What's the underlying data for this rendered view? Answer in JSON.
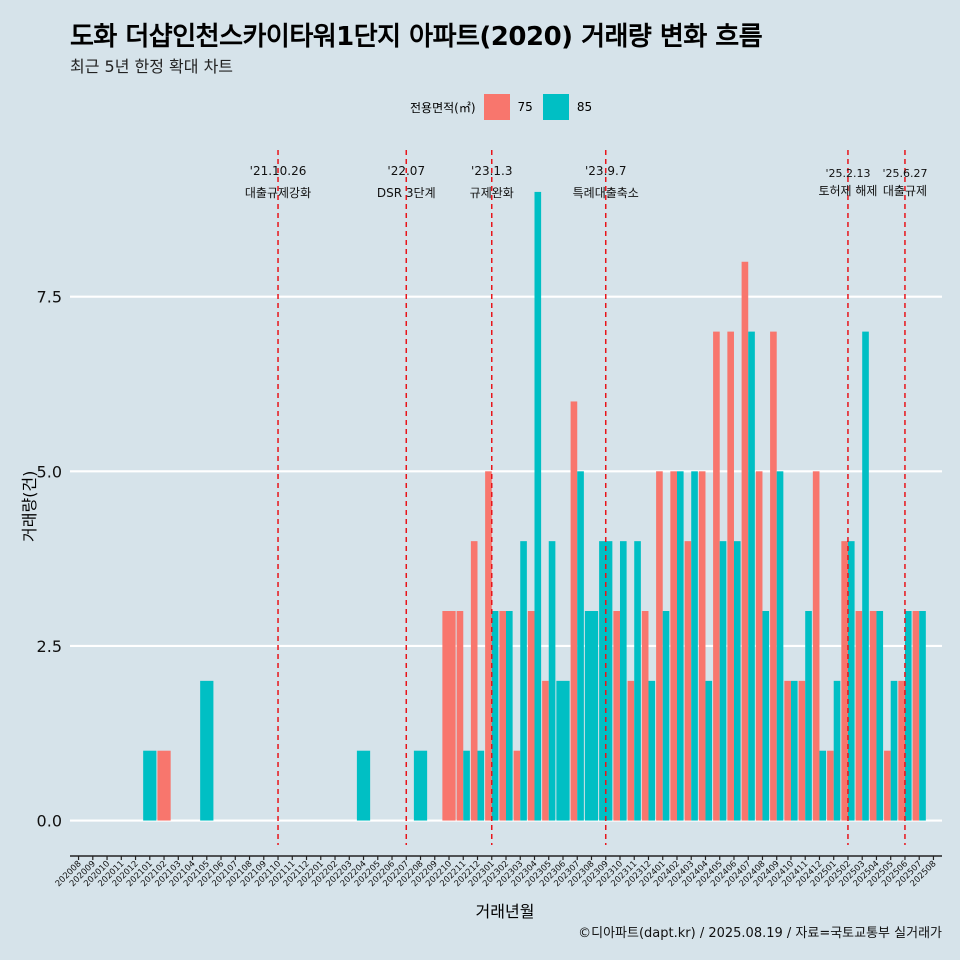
{
  "header": {
    "title": "도화 더샵인천스카이타워1단지 아파트(2020) 거래량 변화 흐름",
    "subtitle": "최근 5년 한정 확대 차트"
  },
  "legend": {
    "title": "전용면적(㎡)",
    "items": [
      {
        "label": "75",
        "color": "#f8766d"
      },
      {
        "label": "85",
        "color": "#00bfc4"
      }
    ]
  },
  "axes": {
    "xlabel": "거래년월",
    "ylabel": "거래량(건)"
  },
  "caption": "©디아파트(dapt.kr) / 2025.08.19 / 자료=국토교통부 실거래가",
  "chart_data": {
    "type": "bar",
    "ylim": [
      -0.35,
      9.6
    ],
    "yticks": [
      0.0,
      2.5,
      5.0,
      7.5
    ],
    "ytick_labels": [
      "0.0",
      "2.5",
      "5.0",
      "7.5"
    ],
    "categories": [
      "202008",
      "202009",
      "202010",
      "202011",
      "202012",
      "202101",
      "202102",
      "202103",
      "202104",
      "202105",
      "202106",
      "202107",
      "202108",
      "202109",
      "202110",
      "202111",
      "202112",
      "202201",
      "202202",
      "202203",
      "202204",
      "202205",
      "202206",
      "202207",
      "202208",
      "202209",
      "202210",
      "202211",
      "202212",
      "202301",
      "202302",
      "202303",
      "202304",
      "202305",
      "202306",
      "202307",
      "202308",
      "202309",
      "202310",
      "202311",
      "202312",
      "202401",
      "202402",
      "202403",
      "202404",
      "202405",
      "202406",
      "202407",
      "202408",
      "202409",
      "202410",
      "202411",
      "202412",
      "202501",
      "202502",
      "202503",
      "202504",
      "202505",
      "202506",
      "202507",
      "202508"
    ],
    "series": [
      {
        "name": "75",
        "color": "#f8766d",
        "values": [
          0,
          0,
          0,
          0,
          0,
          0,
          1,
          0,
          0,
          0,
          0,
          0,
          0,
          0,
          0,
          0,
          0,
          0,
          0,
          0,
          0,
          0,
          0,
          0,
          0,
          0,
          3,
          3,
          4,
          5,
          3,
          1,
          3,
          2,
          0,
          6,
          0,
          0,
          3,
          2,
          3,
          5,
          5,
          4,
          5,
          7,
          7,
          8,
          5,
          7,
          2,
          2,
          5,
          1,
          4,
          3,
          3,
          1,
          2,
          3,
          0
        ]
      },
      {
        "name": "85",
        "color": "#00bfc4",
        "values": [
          0,
          0,
          0,
          0,
          0,
          1,
          0,
          0,
          0,
          2,
          0,
          0,
          0,
          0,
          0,
          0,
          0,
          0,
          0,
          0,
          1,
          0,
          0,
          0,
          1,
          0,
          0,
          1,
          1,
          3,
          3,
          4,
          9,
          4,
          2,
          5,
          3,
          4,
          4,
          4,
          2,
          3,
          5,
          5,
          2,
          4,
          4,
          7,
          3,
          5,
          2,
          3,
          1,
          2,
          4,
          7,
          3,
          2,
          3,
          3,
          0
        ]
      }
    ],
    "events": [
      {
        "date": "'21.10.26",
        "label": "대출규제강화",
        "category": "202110"
      },
      {
        "date": "'22.07",
        "label": "DSR 3단계",
        "category": "202207"
      },
      {
        "date": "'23.1.3",
        "label": "규제완화",
        "category": "202301"
      },
      {
        "date": "'23.9.7",
        "label": "특례대출축소",
        "category": "202309"
      },
      {
        "date": "'25.2.13",
        "label": "토허제 해제",
        "category": "202502"
      },
      {
        "date": "'25.6.27",
        "label": "대출규제",
        "category": "202506"
      }
    ]
  }
}
